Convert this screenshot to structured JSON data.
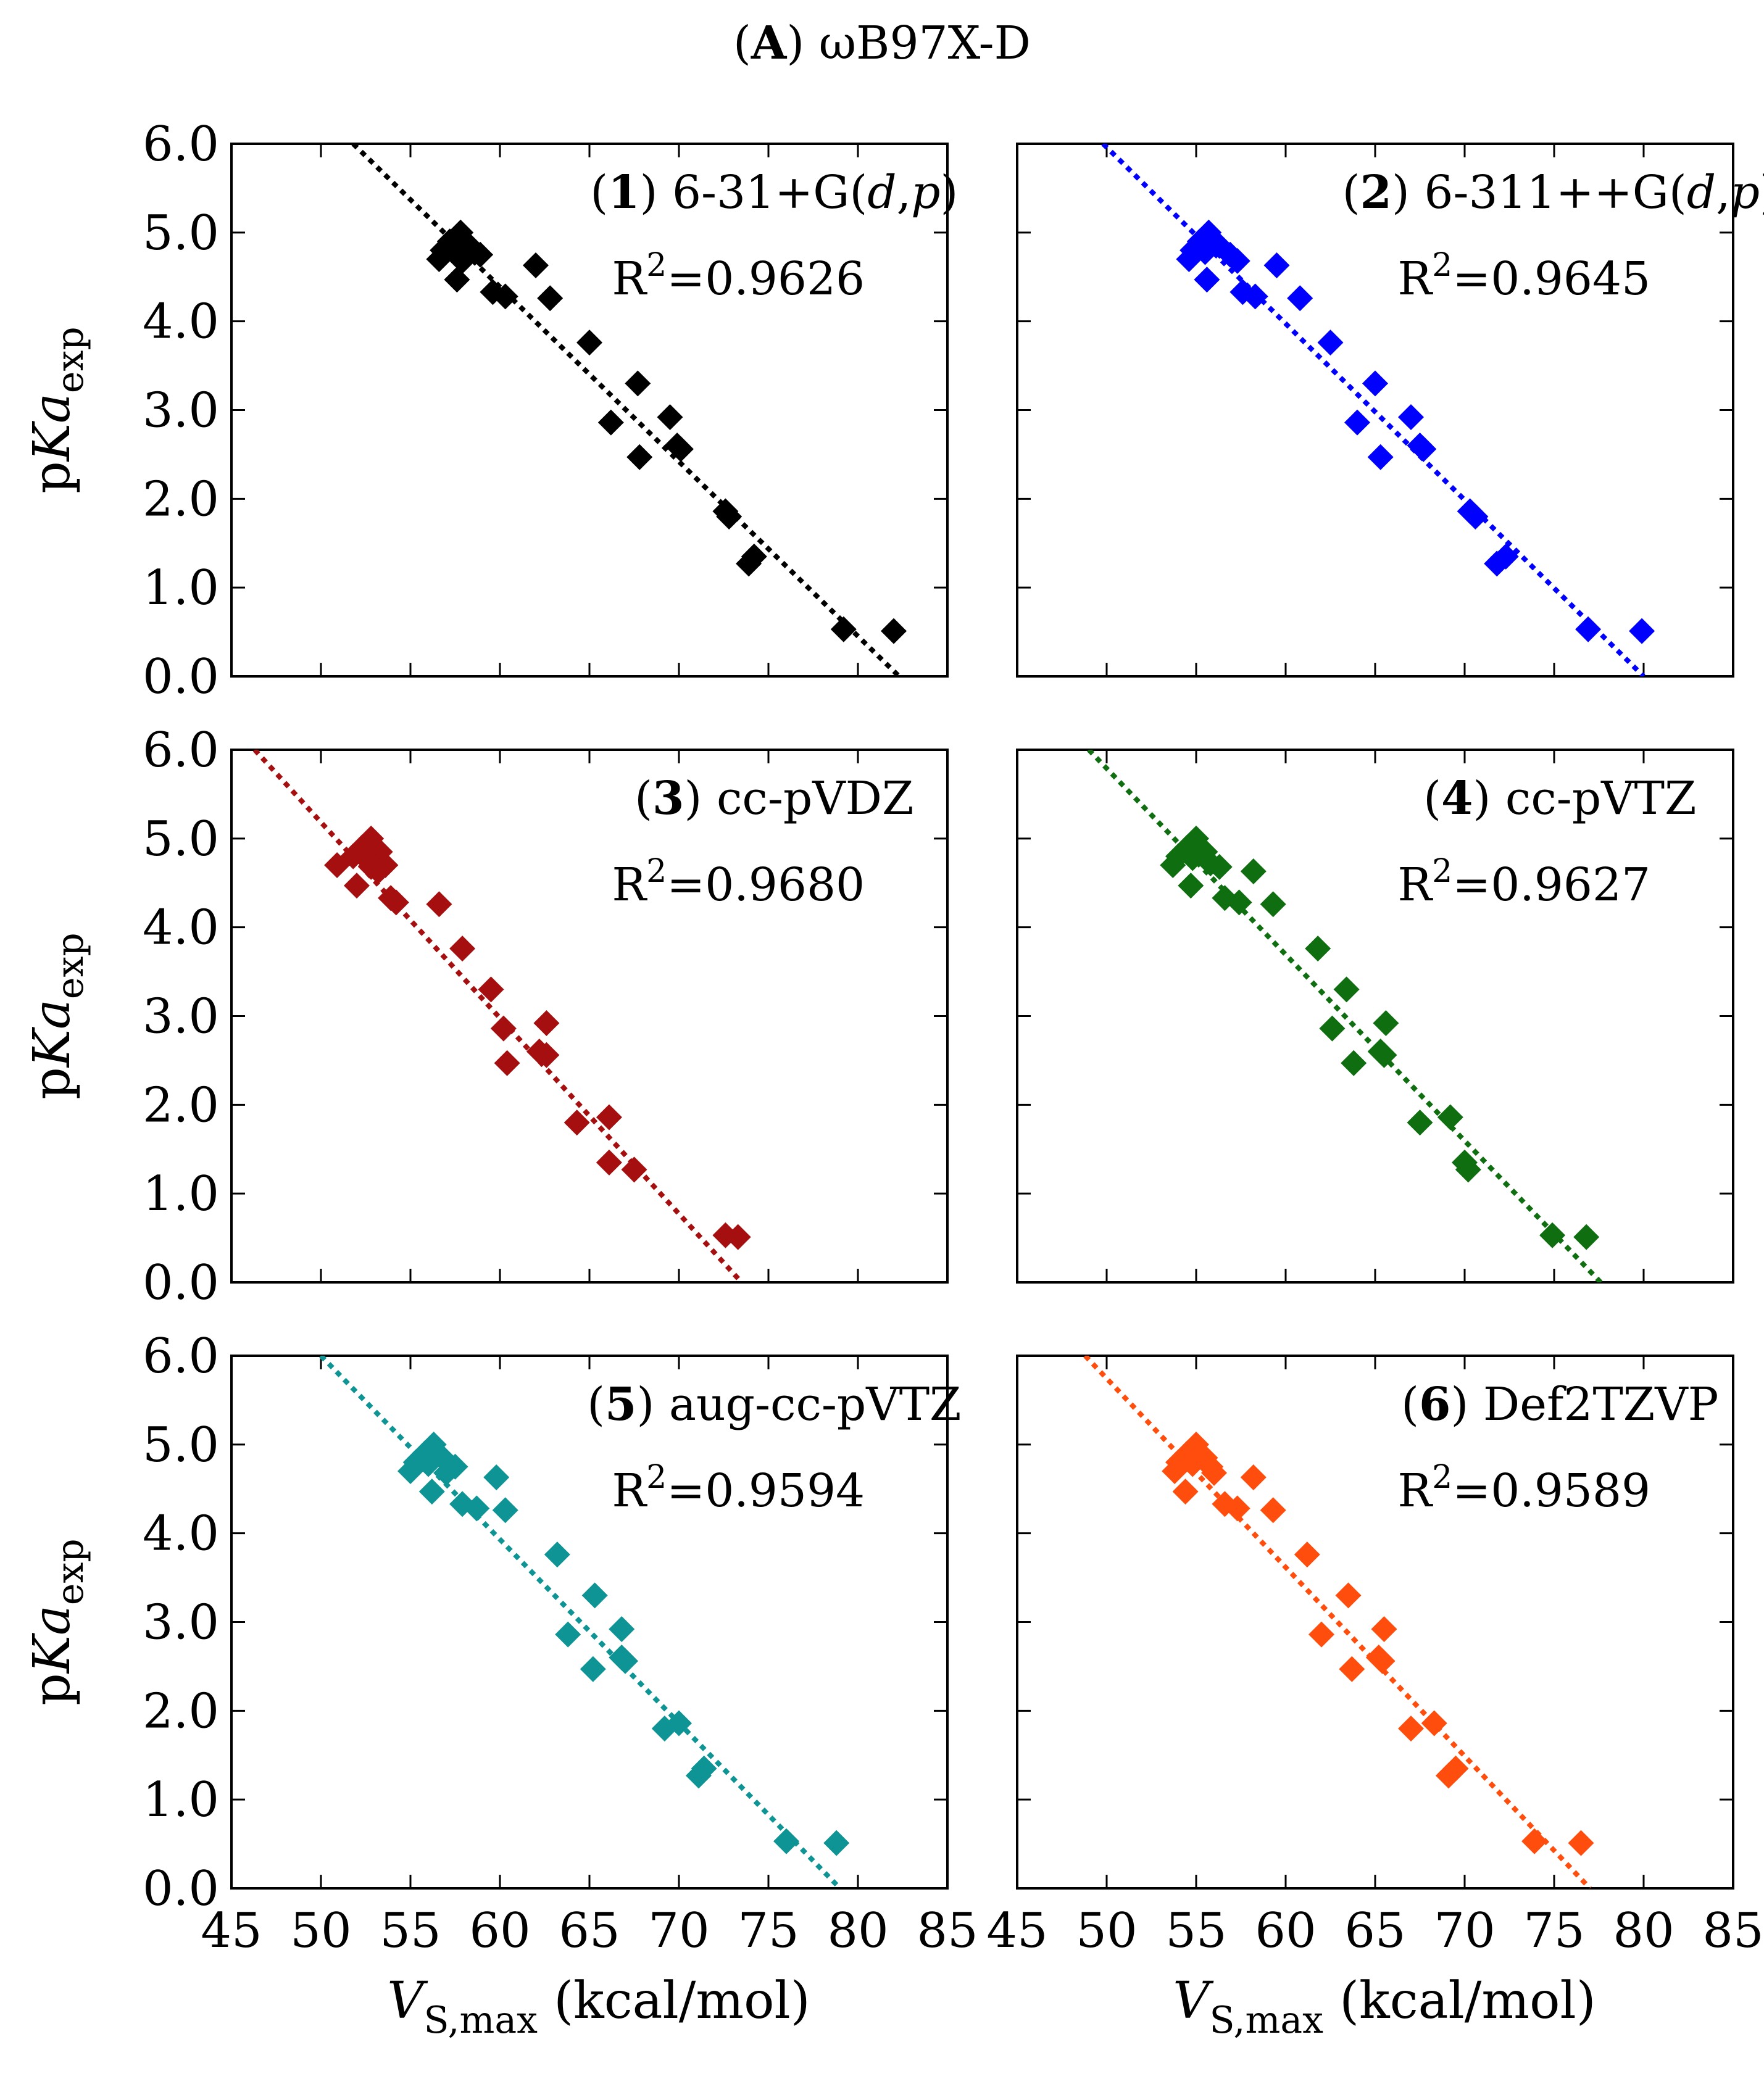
{
  "figure": {
    "title_letter": "A",
    "title_method": "ωB97X-D",
    "xlabel_var": "V",
    "xlabel_sub": "S,max",
    "xlabel_unit": " (kcal/mol)",
    "ylabel_prefix": "p",
    "ylabel_var": "Ka",
    "ylabel_sub": "exp",
    "r2_prefix": "R",
    "r2_sup": "2"
  },
  "chart_data": [
    {
      "type": "scatter",
      "panel_number": "1",
      "basis_set_parts": [
        {
          "t": "6-31+G("
        },
        {
          "t": "d",
          "i": true
        },
        {
          "t": ","
        },
        {
          "t": "p",
          "i": true
        },
        {
          "t": ")"
        }
      ],
      "r2_value": "=0.9626",
      "color": "#000000",
      "x_ticks": [
        "45",
        "50",
        "55",
        "60",
        "65",
        "70",
        "75",
        "80",
        "85"
      ],
      "y_ticks": [
        "0.0",
        "1.0",
        "2.0",
        "3.0",
        "4.0",
        "5.0",
        "6.0"
      ],
      "xlim": [
        45,
        85
      ],
      "ylim": [
        0,
        6
      ],
      "fit_line": {
        "x": [
          51.8,
          82.3
        ],
        "y": [
          6.0,
          0.0
        ]
      },
      "points": [
        {
          "x": 57.8,
          "y": 5.0
        },
        {
          "x": 57.2,
          "y": 4.9
        },
        {
          "x": 58.3,
          "y": 4.85
        },
        {
          "x": 56.8,
          "y": 4.8
        },
        {
          "x": 57.5,
          "y": 4.78
        },
        {
          "x": 58.9,
          "y": 4.75
        },
        {
          "x": 56.6,
          "y": 4.7
        },
        {
          "x": 57.9,
          "y": 4.68
        },
        {
          "x": 62.0,
          "y": 4.63
        },
        {
          "x": 57.6,
          "y": 4.47
        },
        {
          "x": 59.6,
          "y": 4.33
        },
        {
          "x": 60.3,
          "y": 4.28
        },
        {
          "x": 62.8,
          "y": 4.26
        },
        {
          "x": 65.0,
          "y": 3.76
        },
        {
          "x": 67.7,
          "y": 3.3
        },
        {
          "x": 69.5,
          "y": 2.92
        },
        {
          "x": 66.2,
          "y": 2.86
        },
        {
          "x": 69.9,
          "y": 2.6
        },
        {
          "x": 70.1,
          "y": 2.56
        },
        {
          "x": 67.8,
          "y": 2.47
        },
        {
          "x": 72.6,
          "y": 1.86
        },
        {
          "x": 72.8,
          "y": 1.8
        },
        {
          "x": 74.2,
          "y": 1.35
        },
        {
          "x": 73.9,
          "y": 1.27
        },
        {
          "x": 79.2,
          "y": 0.53
        },
        {
          "x": 82.0,
          "y": 0.51
        }
      ]
    },
    {
      "type": "scatter",
      "panel_number": "2",
      "basis_set_parts": [
        {
          "t": "6-311++G("
        },
        {
          "t": "d",
          "i": true
        },
        {
          "t": ","
        },
        {
          "t": "p",
          "i": true
        },
        {
          "t": ")"
        }
      ],
      "r2_value": "=0.9645",
      "color": "#0000ff",
      "x_ticks": [
        "45",
        "50",
        "55",
        "60",
        "65",
        "70",
        "75",
        "80",
        "85"
      ],
      "y_ticks": [
        "0.0",
        "1.0",
        "2.0",
        "3.0",
        "4.0",
        "5.0",
        "6.0"
      ],
      "xlim": [
        45,
        85
      ],
      "ylim": [
        0,
        6
      ],
      "fit_line": {
        "x": [
          49.8,
          80.0
        ],
        "y": [
          6.0,
          0.0
        ]
      },
      "points": [
        {
          "x": 55.7,
          "y": 5.0
        },
        {
          "x": 55.2,
          "y": 4.9
        },
        {
          "x": 56.3,
          "y": 4.85
        },
        {
          "x": 54.8,
          "y": 4.8
        },
        {
          "x": 55.5,
          "y": 4.78
        },
        {
          "x": 56.9,
          "y": 4.75
        },
        {
          "x": 54.6,
          "y": 4.7
        },
        {
          "x": 57.3,
          "y": 4.68
        },
        {
          "x": 59.5,
          "y": 4.63
        },
        {
          "x": 55.6,
          "y": 4.47
        },
        {
          "x": 57.6,
          "y": 4.33
        },
        {
          "x": 58.3,
          "y": 4.28
        },
        {
          "x": 60.8,
          "y": 4.26
        },
        {
          "x": 62.5,
          "y": 3.76
        },
        {
          "x": 65.0,
          "y": 3.3
        },
        {
          "x": 67.0,
          "y": 2.92
        },
        {
          "x": 64.0,
          "y": 2.86
        },
        {
          "x": 67.5,
          "y": 2.6
        },
        {
          "x": 67.7,
          "y": 2.56
        },
        {
          "x": 65.3,
          "y": 2.47
        },
        {
          "x": 70.3,
          "y": 1.86
        },
        {
          "x": 70.6,
          "y": 1.8
        },
        {
          "x": 72.3,
          "y": 1.35
        },
        {
          "x": 71.8,
          "y": 1.27
        },
        {
          "x": 76.9,
          "y": 0.53
        },
        {
          "x": 79.9,
          "y": 0.51
        }
      ]
    },
    {
      "type": "scatter",
      "panel_number": "3",
      "basis_set_parts": [
        {
          "t": "cc-pVDZ"
        }
      ],
      "r2_value": "=0.9680",
      "color": "#a50f0f",
      "x_ticks": [
        "45",
        "50",
        "55",
        "60",
        "65",
        "70",
        "75",
        "80",
        "85"
      ],
      "y_ticks": [
        "0.0",
        "1.0",
        "2.0",
        "3.0",
        "4.0",
        "5.0",
        "6.0"
      ],
      "xlim": [
        45,
        85
      ],
      "ylim": [
        0,
        6
      ],
      "fit_line": {
        "x": [
          46.3,
          73.5
        ],
        "y": [
          6.0,
          0.0
        ]
      },
      "points": [
        {
          "x": 52.8,
          "y": 5.0
        },
        {
          "x": 52.3,
          "y": 4.9
        },
        {
          "x": 53.3,
          "y": 4.85
        },
        {
          "x": 51.8,
          "y": 4.8
        },
        {
          "x": 52.5,
          "y": 4.78
        },
        {
          "x": 53.6,
          "y": 4.7
        },
        {
          "x": 50.9,
          "y": 4.7
        },
        {
          "x": 52.8,
          "y": 4.68
        },
        {
          "x": 53.2,
          "y": 4.63
        },
        {
          "x": 52.0,
          "y": 4.47
        },
        {
          "x": 53.9,
          "y": 4.33
        },
        {
          "x": 54.2,
          "y": 4.28
        },
        {
          "x": 56.6,
          "y": 4.26
        },
        {
          "x": 57.9,
          "y": 3.76
        },
        {
          "x": 59.5,
          "y": 3.3
        },
        {
          "x": 62.6,
          "y": 2.92
        },
        {
          "x": 60.2,
          "y": 2.86
        },
        {
          "x": 62.2,
          "y": 2.6
        },
        {
          "x": 62.6,
          "y": 2.56
        },
        {
          "x": 60.4,
          "y": 2.47
        },
        {
          "x": 66.1,
          "y": 1.86
        },
        {
          "x": 64.3,
          "y": 1.8
        },
        {
          "x": 66.1,
          "y": 1.35
        },
        {
          "x": 67.5,
          "y": 1.27
        },
        {
          "x": 72.6,
          "y": 0.53
        },
        {
          "x": 73.3,
          "y": 0.51
        }
      ]
    },
    {
      "type": "scatter",
      "panel_number": "4",
      "basis_set_parts": [
        {
          "t": "cc-pVTZ"
        }
      ],
      "r2_value": "=0.9627",
      "color": "#0f6e0f",
      "x_ticks": [
        "45",
        "50",
        "55",
        "60",
        "65",
        "70",
        "75",
        "80",
        "85"
      ],
      "y_ticks": [
        "0.0",
        "1.0",
        "2.0",
        "3.0",
        "4.0",
        "5.0",
        "6.0"
      ],
      "xlim": [
        45,
        85
      ],
      "ylim": [
        0,
        6
      ],
      "fit_line": {
        "x": [
          49.0,
          77.6
        ],
        "y": [
          6.0,
          0.0
        ]
      },
      "points": [
        {
          "x": 55.0,
          "y": 5.0
        },
        {
          "x": 54.5,
          "y": 4.9
        },
        {
          "x": 55.5,
          "y": 4.85
        },
        {
          "x": 54.0,
          "y": 4.8
        },
        {
          "x": 54.8,
          "y": 4.78
        },
        {
          "x": 55.8,
          "y": 4.72
        },
        {
          "x": 53.7,
          "y": 4.7
        },
        {
          "x": 56.3,
          "y": 4.68
        },
        {
          "x": 58.2,
          "y": 4.63
        },
        {
          "x": 54.7,
          "y": 4.47
        },
        {
          "x": 56.6,
          "y": 4.33
        },
        {
          "x": 57.4,
          "y": 4.28
        },
        {
          "x": 59.3,
          "y": 4.26
        },
        {
          "x": 61.8,
          "y": 3.76
        },
        {
          "x": 63.4,
          "y": 3.3
        },
        {
          "x": 65.6,
          "y": 2.92
        },
        {
          "x": 62.6,
          "y": 2.86
        },
        {
          "x": 65.3,
          "y": 2.6
        },
        {
          "x": 65.5,
          "y": 2.56
        },
        {
          "x": 63.8,
          "y": 2.47
        },
        {
          "x": 69.2,
          "y": 1.86
        },
        {
          "x": 67.5,
          "y": 1.8
        },
        {
          "x": 70.0,
          "y": 1.35
        },
        {
          "x": 70.2,
          "y": 1.27
        },
        {
          "x": 74.9,
          "y": 0.53
        },
        {
          "x": 76.8,
          "y": 0.51
        }
      ]
    },
    {
      "type": "scatter",
      "panel_number": "5",
      "basis_set_parts": [
        {
          "t": "aug-cc-pVTZ"
        }
      ],
      "r2_value": "=0.9594",
      "color": "#0e9494",
      "x_ticks": [
        "45",
        "50",
        "55",
        "60",
        "65",
        "70",
        "75",
        "80",
        "85"
      ],
      "y_ticks": [
        "0.0",
        "1.0",
        "2.0",
        "3.0",
        "4.0",
        "5.0",
        "6.0"
      ],
      "xlim": [
        45,
        85
      ],
      "ylim": [
        0,
        6
      ],
      "fit_line": {
        "x": [
          50.0,
          79.0
        ],
        "y": [
          6.0,
          0.0
        ]
      },
      "points": [
        {
          "x": 56.3,
          "y": 5.0
        },
        {
          "x": 55.8,
          "y": 4.9
        },
        {
          "x": 56.8,
          "y": 4.85
        },
        {
          "x": 55.3,
          "y": 4.8
        },
        {
          "x": 56.0,
          "y": 4.78
        },
        {
          "x": 57.5,
          "y": 4.75
        },
        {
          "x": 55.0,
          "y": 4.7
        },
        {
          "x": 57.0,
          "y": 4.68
        },
        {
          "x": 59.8,
          "y": 4.63
        },
        {
          "x": 56.2,
          "y": 4.47
        },
        {
          "x": 57.9,
          "y": 4.33
        },
        {
          "x": 58.7,
          "y": 4.28
        },
        {
          "x": 60.3,
          "y": 4.26
        },
        {
          "x": 63.2,
          "y": 3.76
        },
        {
          "x": 65.3,
          "y": 3.3
        },
        {
          "x": 66.8,
          "y": 2.92
        },
        {
          "x": 63.8,
          "y": 2.86
        },
        {
          "x": 66.8,
          "y": 2.6
        },
        {
          "x": 67.0,
          "y": 2.56
        },
        {
          "x": 65.2,
          "y": 2.47
        },
        {
          "x": 70.0,
          "y": 1.86
        },
        {
          "x": 69.2,
          "y": 1.8
        },
        {
          "x": 71.4,
          "y": 1.35
        },
        {
          "x": 71.1,
          "y": 1.27
        },
        {
          "x": 76.0,
          "y": 0.53
        },
        {
          "x": 78.8,
          "y": 0.51
        }
      ]
    },
    {
      "type": "scatter",
      "panel_number": "6",
      "basis_set_parts": [
        {
          "t": "Def2TZVP"
        }
      ],
      "r2_value": "=0.9589",
      "color": "#ff4d0d",
      "x_ticks": [
        "45",
        "50",
        "55",
        "60",
        "65",
        "70",
        "75",
        "80",
        "85"
      ],
      "y_ticks": [
        "0.0",
        "1.0",
        "2.0",
        "3.0",
        "4.0",
        "5.0",
        "6.0"
      ],
      "xlim": [
        45,
        85
      ],
      "ylim": [
        0,
        6
      ],
      "fit_line": {
        "x": [
          48.8,
          77.0
        ],
        "y": [
          6.0,
          0.0
        ]
      },
      "points": [
        {
          "x": 55.0,
          "y": 5.0
        },
        {
          "x": 54.5,
          "y": 4.9
        },
        {
          "x": 55.5,
          "y": 4.85
        },
        {
          "x": 54.0,
          "y": 4.8
        },
        {
          "x": 54.8,
          "y": 4.78
        },
        {
          "x": 55.8,
          "y": 4.75
        },
        {
          "x": 53.8,
          "y": 4.7
        },
        {
          "x": 56.0,
          "y": 4.68
        },
        {
          "x": 58.2,
          "y": 4.63
        },
        {
          "x": 54.4,
          "y": 4.47
        },
        {
          "x": 56.6,
          "y": 4.33
        },
        {
          "x": 57.3,
          "y": 4.28
        },
        {
          "x": 59.3,
          "y": 4.26
        },
        {
          "x": 61.2,
          "y": 3.76
        },
        {
          "x": 63.5,
          "y": 3.3
        },
        {
          "x": 65.5,
          "y": 2.92
        },
        {
          "x": 62.0,
          "y": 2.86
        },
        {
          "x": 65.2,
          "y": 2.6
        },
        {
          "x": 65.4,
          "y": 2.56
        },
        {
          "x": 63.7,
          "y": 2.47
        },
        {
          "x": 68.3,
          "y": 1.86
        },
        {
          "x": 67.0,
          "y": 1.8
        },
        {
          "x": 69.5,
          "y": 1.35
        },
        {
          "x": 69.1,
          "y": 1.27
        },
        {
          "x": 73.9,
          "y": 0.53
        },
        {
          "x": 76.5,
          "y": 0.51
        }
      ]
    }
  ]
}
